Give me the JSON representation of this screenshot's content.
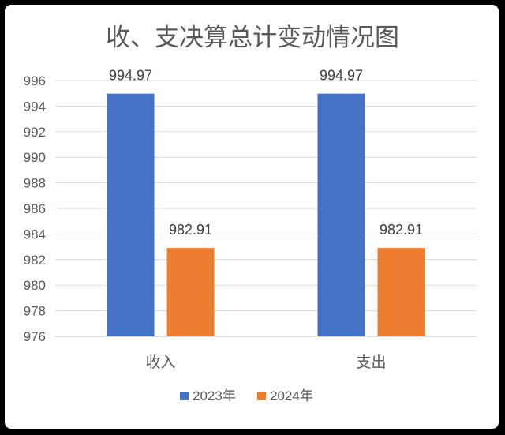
{
  "chart_data": {
    "type": "bar",
    "title": "收、支决算总计变动情况图",
    "categories": [
      "收入",
      "支出"
    ],
    "series": [
      {
        "name": "2023年",
        "values": [
          994.97,
          994.97
        ],
        "color": "#4472C4",
        "labels": [
          "994.97",
          "994.97"
        ]
      },
      {
        "name": "2024年",
        "values": [
          982.91,
          982.91
        ],
        "color": "#ED7D31",
        "labels": [
          "982.91",
          "982.91"
        ]
      }
    ],
    "ylim": [
      976,
      996
    ],
    "yticks": [
      "976",
      "978",
      "980",
      "982",
      "984",
      "986",
      "988",
      "990",
      "992",
      "994",
      "996"
    ],
    "grid": true,
    "legend_position": "bottom"
  }
}
